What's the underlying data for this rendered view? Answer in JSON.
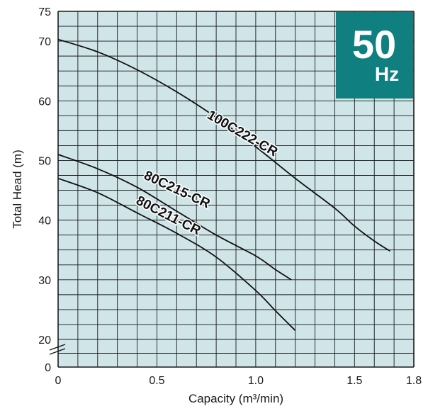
{
  "chart_data": {
    "type": "line",
    "xlabel": "Capacity (m³/min)",
    "ylabel": "Total Head (m)",
    "xlim": [
      0,
      1.8
    ],
    "x_ticks": [
      "0",
      "0.5",
      "1.0",
      "1.5",
      "1.8"
    ],
    "x_tick_values": [
      0,
      0.5,
      1.0,
      1.5,
      1.8
    ],
    "y_ticks_upper": [
      "20",
      "30",
      "40",
      "50",
      "60",
      "70",
      "75"
    ],
    "y_ticks_upper_values": [
      20,
      30,
      40,
      50,
      60,
      70,
      75
    ],
    "y_tick_zero": "0",
    "y_range_shown": [
      15,
      75
    ],
    "broken_axis": true,
    "grid": true,
    "colors": {
      "plot_background": "#cfe5e8",
      "grid": "#1a1a1a",
      "curve": "#111111",
      "badge": "#0f7f80"
    },
    "badge": {
      "value": "50",
      "unit": "Hz"
    },
    "series": [
      {
        "name": "100C222-CR",
        "x": [
          0,
          0.2,
          0.4,
          0.6,
          0.8,
          1.0,
          1.2,
          1.4,
          1.5,
          1.6,
          1.68
        ],
        "y": [
          70.3,
          68.2,
          65.2,
          61.5,
          57.2,
          52.3,
          47.0,
          42.0,
          39.0,
          36.5,
          34.8
        ]
      },
      {
        "name": "80C215-CR",
        "x": [
          0,
          0.2,
          0.4,
          0.6,
          0.8,
          1.0,
          1.1,
          1.18
        ],
        "y": [
          51.0,
          48.6,
          45.5,
          41.5,
          37.5,
          34.0,
          31.7,
          30.0
        ]
      },
      {
        "name": "80C211-CR",
        "x": [
          0,
          0.2,
          0.4,
          0.6,
          0.8,
          1.0,
          1.1,
          1.2
        ],
        "y": [
          47.0,
          44.6,
          41.2,
          37.8,
          33.8,
          28.2,
          24.8,
          21.5
        ]
      }
    ]
  }
}
